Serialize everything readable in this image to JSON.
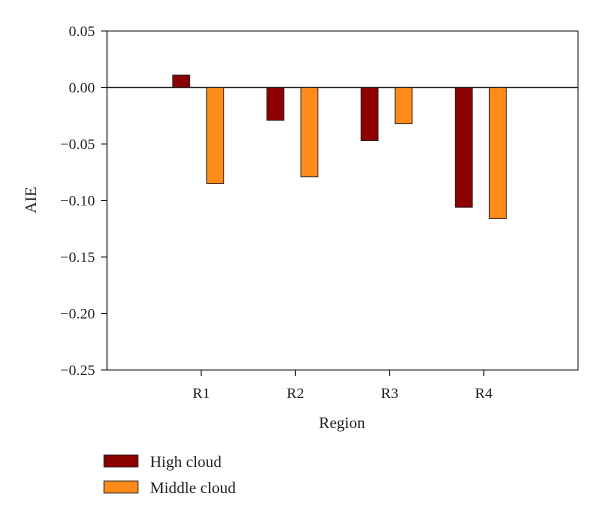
{
  "chart_data": {
    "type": "bar",
    "title": "",
    "xlabel": "Region",
    "ylabel": "AIE",
    "categories": [
      "R1",
      "R2",
      "R3",
      "R4"
    ],
    "series": [
      {
        "name": "High cloud",
        "color": "#8b0000",
        "values": [
          0.011,
          -0.029,
          -0.047,
          -0.106
        ]
      },
      {
        "name": "Middle cloud",
        "color": "#ff8c1a",
        "values": [
          -0.085,
          -0.079,
          -0.032,
          -0.116
        ]
      }
    ],
    "ylim": [
      -0.25,
      0.05
    ],
    "yticks": [
      0.05,
      0.0,
      -0.05,
      -0.1,
      -0.15,
      -0.2,
      -0.25
    ],
    "ytick_labels": [
      "0.05",
      "0.00",
      "−0.05",
      "−0.10",
      "−0.15",
      "−0.20",
      "−0.25"
    ],
    "zero_line": true,
    "grid": false,
    "legend_position": "bottom-left"
  }
}
